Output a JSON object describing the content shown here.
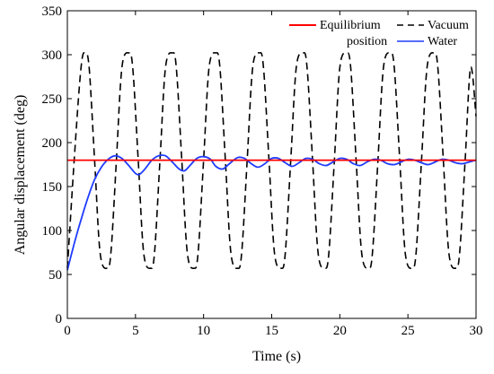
{
  "chart_data": {
    "type": "line",
    "title": "",
    "xlabel": "Time (s)",
    "ylabel": "Angular displacement (deg)",
    "xlim": [
      0,
      30
    ],
    "ylim": [
      0,
      350
    ],
    "xticks": [
      0,
      5,
      10,
      15,
      20,
      25,
      30
    ],
    "yticks": [
      0,
      50,
      100,
      150,
      200,
      250,
      300,
      350
    ],
    "grid": false,
    "legend_position": "top-right",
    "series": [
      {
        "name": "Equilibrium position",
        "style": "solid",
        "color": "#ff0000",
        "x": [
          0,
          30
        ],
        "y": [
          180,
          180
        ]
      },
      {
        "name": "Vacuum",
        "style": "dashed",
        "color": "#000000",
        "x": [
          0.0,
          0.5,
          1.0,
          1.3,
          1.6,
          2.0,
          2.4,
          2.9,
          3.2,
          3.6,
          4.0,
          4.5,
          4.8,
          5.2,
          5.6,
          6.1,
          6.4,
          6.8,
          7.2,
          7.7,
          8.0,
          8.4,
          8.8,
          9.3,
          9.6,
          10.0,
          10.4,
          10.9,
          11.2,
          11.6,
          12.0,
          12.5,
          12.8,
          13.2,
          13.6,
          14.1,
          14.4,
          14.8,
          15.2,
          15.7,
          16.0,
          16.4,
          16.8,
          17.3,
          17.6,
          18.0,
          18.4,
          18.9,
          19.2,
          19.6,
          20.0,
          20.5,
          20.8,
          21.2,
          21.6,
          22.1,
          22.4,
          22.8,
          23.2,
          23.7,
          24.0,
          24.4,
          24.8,
          25.3,
          25.6,
          26.0,
          26.4,
          26.9,
          27.2,
          27.6,
          28.0,
          28.5,
          28.8,
          29.2,
          29.6,
          30.0
        ],
        "y": [
          57,
          180,
          285,
          302,
          285,
          180,
          75,
          57,
          75,
          180,
          285,
          302,
          285,
          180,
          75,
          57,
          75,
          180,
          285,
          302,
          285,
          180,
          75,
          57,
          75,
          180,
          285,
          302,
          285,
          180,
          75,
          57,
          75,
          180,
          285,
          302,
          285,
          180,
          75,
          57,
          75,
          180,
          285,
          302,
          285,
          180,
          75,
          57,
          75,
          180,
          285,
          302,
          285,
          180,
          75,
          57,
          75,
          180,
          285,
          302,
          285,
          180,
          75,
          57,
          75,
          180,
          285,
          302,
          285,
          180,
          75,
          57,
          75,
          180,
          285,
          230
        ]
      },
      {
        "name": "Water",
        "style": "solid",
        "color": "#1e3cff",
        "x": [
          0,
          0.5,
          1.0,
          1.5,
          2.0,
          2.5,
          3.0,
          3.5,
          4.0,
          4.5,
          5.0,
          5.3,
          5.7,
          6.2,
          6.7,
          7.2,
          7.7,
          8.2,
          8.6,
          9.0,
          9.5,
          10.0,
          10.5,
          10.9,
          11.4,
          11.9,
          12.5,
          13.0,
          13.5,
          14.0,
          14.5,
          15.0,
          15.5,
          16.0,
          16.5,
          17.0,
          17.5,
          18.0,
          18.5,
          19.0,
          19.5,
          20.0,
          20.5,
          21.0,
          21.5,
          22.0,
          22.5,
          23.0,
          23.5,
          24.0,
          24.5,
          25.0,
          25.5,
          26.0,
          26.5,
          27.0,
          27.5,
          28.0,
          28.5,
          29.0,
          29.5,
          30.0
        ],
        "y": [
          55,
          85,
          112,
          137,
          158,
          172,
          181,
          185,
          182,
          174,
          165,
          164,
          170,
          180,
          185,
          185,
          178,
          170,
          168,
          174,
          182,
          184,
          181,
          173,
          170,
          176,
          183,
          182,
          176,
          172,
          176,
          182,
          182,
          177,
          173,
          177,
          182,
          181,
          176,
          174,
          178,
          182,
          181,
          176,
          174,
          178,
          181,
          180,
          176,
          175,
          178,
          181,
          180,
          177,
          175,
          178,
          181,
          180,
          177,
          176,
          178,
          180
        ]
      }
    ]
  }
}
